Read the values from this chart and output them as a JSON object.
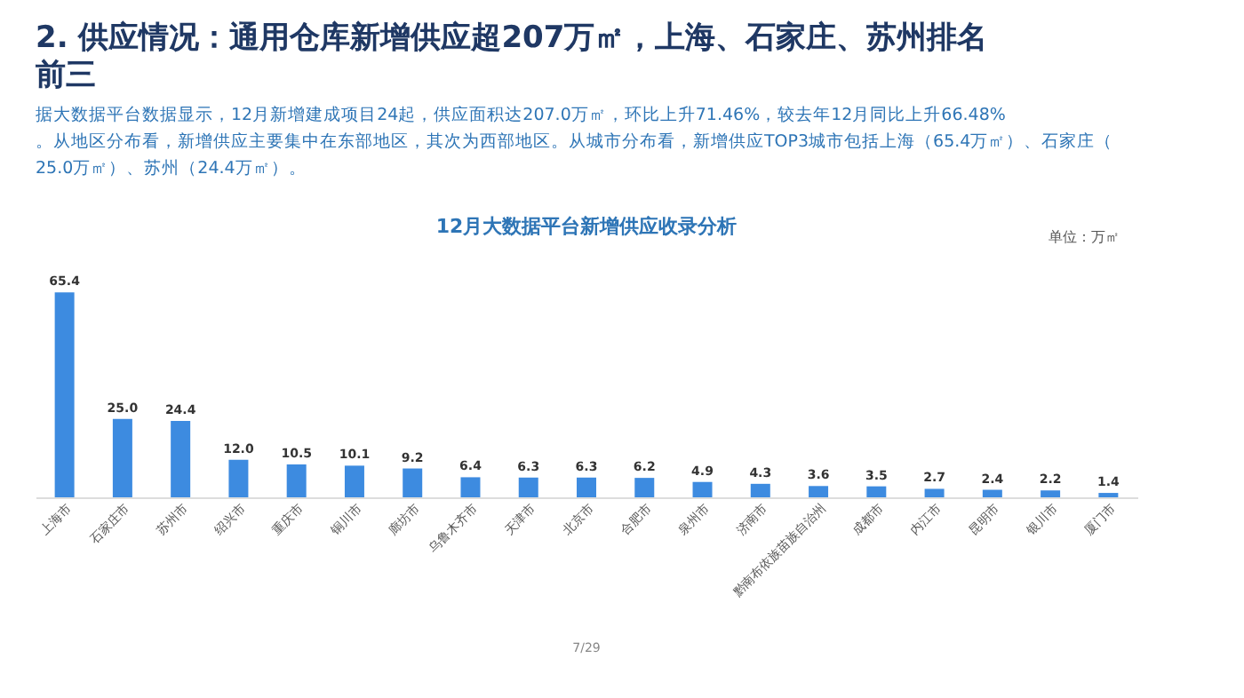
{
  "chart_data": {
    "type": "bar",
    "title": "2. 供应情况：通用仓库新增供应超207万㎡，上海、石家庄、苏州排名前三",
    "subtitle": "据大数据平台数据显示，12月新增建成项目24起，供应面积达207.0万㎡，环比上升71.46%，较去年12月同比上升66.48%。从地区分布看，新增供应主要集中在东部地区，其次为西部地区。从城市分布看，新增供应TOP3城市包括上海（65.4万㎡）、石家庄（25.0万㎡）、苏州（24.4万㎡）。",
    "annotations": [
      "12月大数据平台新增供应收录分析",
      "单位：万㎡",
      "7/29"
    ],
    "categories": [
      "上海市",
      "石家庄市",
      "苏州市",
      "绍兴市",
      "重庆市",
      "铜川市",
      "廊坊市",
      "乌鲁木齐市",
      "天津市",
      "北京市",
      "合肥市",
      "泉州市",
      "济南市",
      "黔南布依族苗族自治州",
      "成都市",
      "内江市",
      "昆明市",
      "银川市",
      "厦门市"
    ],
    "values": [
      65.4,
      25.0,
      24.4,
      12.0,
      10.5,
      10.1,
      9.2,
      6.4,
      6.3,
      6.3,
      6.2,
      4.9,
      4.3,
      3.6,
      3.5,
      2.7,
      2.4,
      2.2,
      1.4
    ],
    "color": "#3d8be0",
    "value_labels": [
      "65.4",
      "25.0",
      "24.4",
      "12.0",
      "10.5",
      "10.1",
      "9.2",
      "6.4",
      "6.3",
      "6.3",
      "6.2",
      "4.9",
      "4.3",
      "3.6",
      "3.5",
      "2.7",
      "2.4",
      "2.2",
      "1.4"
    ],
    "grid": false
  }
}
